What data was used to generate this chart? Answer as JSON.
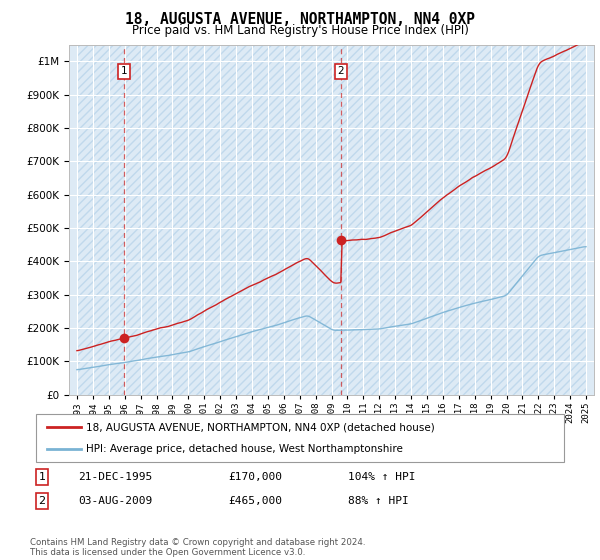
{
  "title": "18, AUGUSTA AVENUE, NORTHAMPTON, NN4 0XP",
  "subtitle": "Price paid vs. HM Land Registry's House Price Index (HPI)",
  "ylim": [
    0,
    1050000
  ],
  "yticks": [
    0,
    100000,
    200000,
    300000,
    400000,
    500000,
    600000,
    700000,
    800000,
    900000,
    1000000
  ],
  "hpi_color": "#7ab3d4",
  "price_color": "#cc2222",
  "bg_color": "#ddeaf5",
  "hatch_color": "#c0d8ec",
  "grid_color": "#ffffff",
  "annotation1_date": "21-DEC-1995",
  "annotation1_price": 170000,
  "annotation1_hpi": "104%",
  "annotation2_date": "03-AUG-2009",
  "annotation2_price": 465000,
  "annotation2_hpi": "88%",
  "legend_label1": "18, AUGUSTA AVENUE, NORTHAMPTON, NN4 0XP (detached house)",
  "legend_label2": "HPI: Average price, detached house, West Northamptonshire",
  "footnote": "Contains HM Land Registry data © Crown copyright and database right 2024.\nThis data is licensed under the Open Government Licence v3.0.",
  "sale1_x": 1995.97,
  "sale1_y": 170000,
  "sale2_x": 2009.59,
  "sale2_y": 465000,
  "xmin": 1993,
  "xmax": 2025
}
